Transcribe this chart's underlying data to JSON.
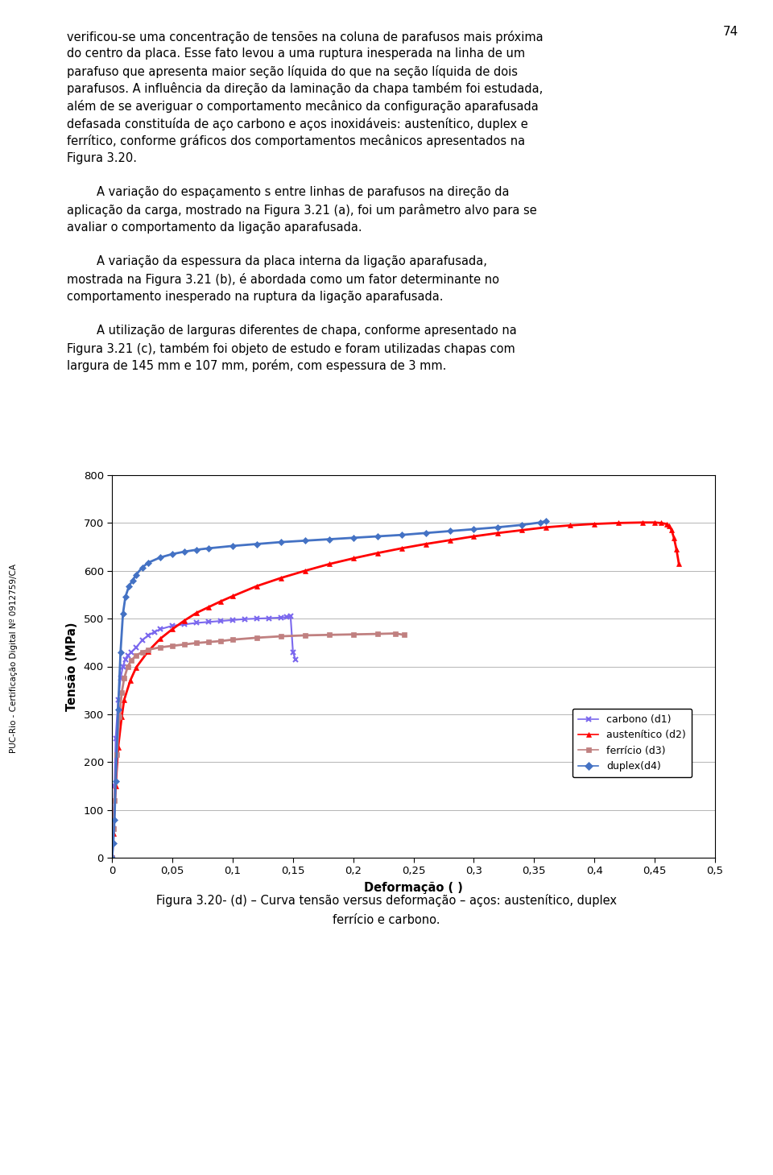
{
  "page_number": "74",
  "side_text": "PUC-Rio - Certificação Digital Nº 0912759/CA",
  "body_paragraphs": [
    "verificou-se uma concentração de tensões na coluna de parafusos mais próxima do centro da placa. Esse fato levou a uma ruptura inesperada na linha de um parafuso que apresenta maior seção líquida do que na seção líquida de dois parafusos. A influência da direção da laminação da chapa também foi estudada, além de se averiguar o comportamento mecânico da configuração aparafusada defasada constituída de aço carbono e aços inoxidáveis: austenítico, duplex e ferrítico, conforme gráficos dos comportamentos mecânicos apresentados na Figura 3.20.",
    "        A variação do espaçamento s entre linhas de parafusos na direção da aplicação da carga, mostrado na Figura 3.21 (a), foi um parâmetro alvo para se avaliar o comportamento da ligação aparafusada.",
    "        A variação da espessura da placa interna da ligação aparafusada, mostrada na Figura 3.21 (b), é abordada como um fator determinante no comportamento inesperado na ruptura da ligação aparafusada.",
    "        A utilização de larguras diferentes de chapa, conforme apresentado na Figura 3.21 (c), também foi objeto de estudo e foram utilizadas chapas com largura de 145 mm e 107 mm, porém, com espessura de 3 mm."
  ],
  "xlabel": "Deformação ( )",
  "ylabel": "Tensão (MPa)",
  "xlim": [
    0,
    0.5
  ],
  "ylim": [
    0,
    800
  ],
  "xticks": [
    0,
    0.05,
    0.1,
    0.15,
    0.2,
    0.25,
    0.3,
    0.35,
    0.4,
    0.45,
    0.5
  ],
  "yticks": [
    0,
    100,
    200,
    300,
    400,
    500,
    600,
    700,
    800
  ],
  "xtick_labels": [
    "0",
    "0,05",
    "0,1",
    "0,15",
    "0,2",
    "0,25",
    "0,3",
    "0,35",
    "0,4",
    "0,45",
    "0,5"
  ],
  "ytick_labels": [
    "0",
    "100",
    "200",
    "300",
    "400",
    "500",
    "600",
    "700",
    "800"
  ],
  "series": [
    {
      "name": "carbono (d1)",
      "color": "#7B68EE",
      "marker": "x",
      "markersize": 4,
      "markeredgewidth": 1.5,
      "linewidth": 1.5,
      "x": [
        0.0,
        0.001,
        0.002,
        0.003,
        0.005,
        0.007,
        0.009,
        0.011,
        0.013,
        0.016,
        0.02,
        0.025,
        0.03,
        0.035,
        0.04,
        0.05,
        0.06,
        0.07,
        0.08,
        0.09,
        0.1,
        0.11,
        0.12,
        0.13,
        0.14,
        0.145,
        0.148,
        0.15,
        0.152
      ],
      "y": [
        0,
        60,
        150,
        250,
        330,
        375,
        400,
        415,
        422,
        430,
        440,
        455,
        465,
        472,
        478,
        485,
        488,
        491,
        493,
        495,
        497,
        499,
        500,
        501,
        502,
        503,
        505,
        430,
        415
      ]
    },
    {
      "name": "austenítico (d2)",
      "color": "#FF0000",
      "marker": "^",
      "markersize": 4,
      "markeredgewidth": 0.5,
      "linewidth": 2.0,
      "x": [
        0.0,
        0.001,
        0.003,
        0.005,
        0.008,
        0.01,
        0.015,
        0.02,
        0.03,
        0.04,
        0.05,
        0.06,
        0.07,
        0.08,
        0.09,
        0.1,
        0.12,
        0.14,
        0.16,
        0.18,
        0.2,
        0.22,
        0.24,
        0.26,
        0.28,
        0.3,
        0.32,
        0.34,
        0.36,
        0.38,
        0.4,
        0.42,
        0.44,
        0.45,
        0.455,
        0.46,
        0.462,
        0.464,
        0.466,
        0.468,
        0.47
      ],
      "y": [
        0,
        50,
        150,
        230,
        295,
        330,
        370,
        398,
        432,
        458,
        478,
        496,
        512,
        524,
        536,
        547,
        568,
        585,
        600,
        614,
        626,
        637,
        647,
        656,
        664,
        672,
        679,
        685,
        691,
        695,
        698,
        700,
        701,
        701,
        700,
        698,
        694,
        685,
        668,
        645,
        615
      ]
    },
    {
      "name": "ferrício (d3)",
      "color": "#C08080",
      "marker": "s",
      "markersize": 4,
      "markeredgewidth": 0.5,
      "linewidth": 2.0,
      "x": [
        0.0,
        0.001,
        0.002,
        0.004,
        0.006,
        0.008,
        0.01,
        0.013,
        0.016,
        0.02,
        0.025,
        0.03,
        0.04,
        0.05,
        0.06,
        0.07,
        0.08,
        0.09,
        0.1,
        0.12,
        0.14,
        0.16,
        0.18,
        0.2,
        0.22,
        0.235,
        0.242
      ],
      "y": [
        0,
        60,
        120,
        215,
        295,
        345,
        375,
        400,
        413,
        423,
        430,
        435,
        440,
        443,
        446,
        449,
        451,
        453,
        456,
        460,
        463,
        465,
        466,
        467,
        468,
        469,
        466
      ]
    },
    {
      "name": "duplex(d4)",
      "color": "#4472C4",
      "marker": "D",
      "markersize": 4,
      "markeredgewidth": 0.5,
      "linewidth": 2.0,
      "x": [
        0.0,
        0.001,
        0.002,
        0.003,
        0.005,
        0.007,
        0.009,
        0.011,
        0.014,
        0.017,
        0.02,
        0.025,
        0.03,
        0.04,
        0.05,
        0.06,
        0.07,
        0.08,
        0.1,
        0.12,
        0.14,
        0.16,
        0.18,
        0.2,
        0.22,
        0.24,
        0.26,
        0.28,
        0.3,
        0.32,
        0.34,
        0.355,
        0.36
      ],
      "y": [
        0,
        30,
        80,
        160,
        310,
        430,
        510,
        545,
        568,
        580,
        592,
        607,
        617,
        628,
        635,
        640,
        644,
        647,
        652,
        656,
        660,
        663,
        666,
        669,
        672,
        675,
        679,
        683,
        687,
        691,
        696,
        701,
        704
      ]
    }
  ],
  "caption_pre": "Figura 3.20- (d) – Curva tensão ",
  "caption_italic": "versus",
  "caption_post": " deformação – aços: austenítico, duplex",
  "caption_line2": "ferrício e carbono."
}
